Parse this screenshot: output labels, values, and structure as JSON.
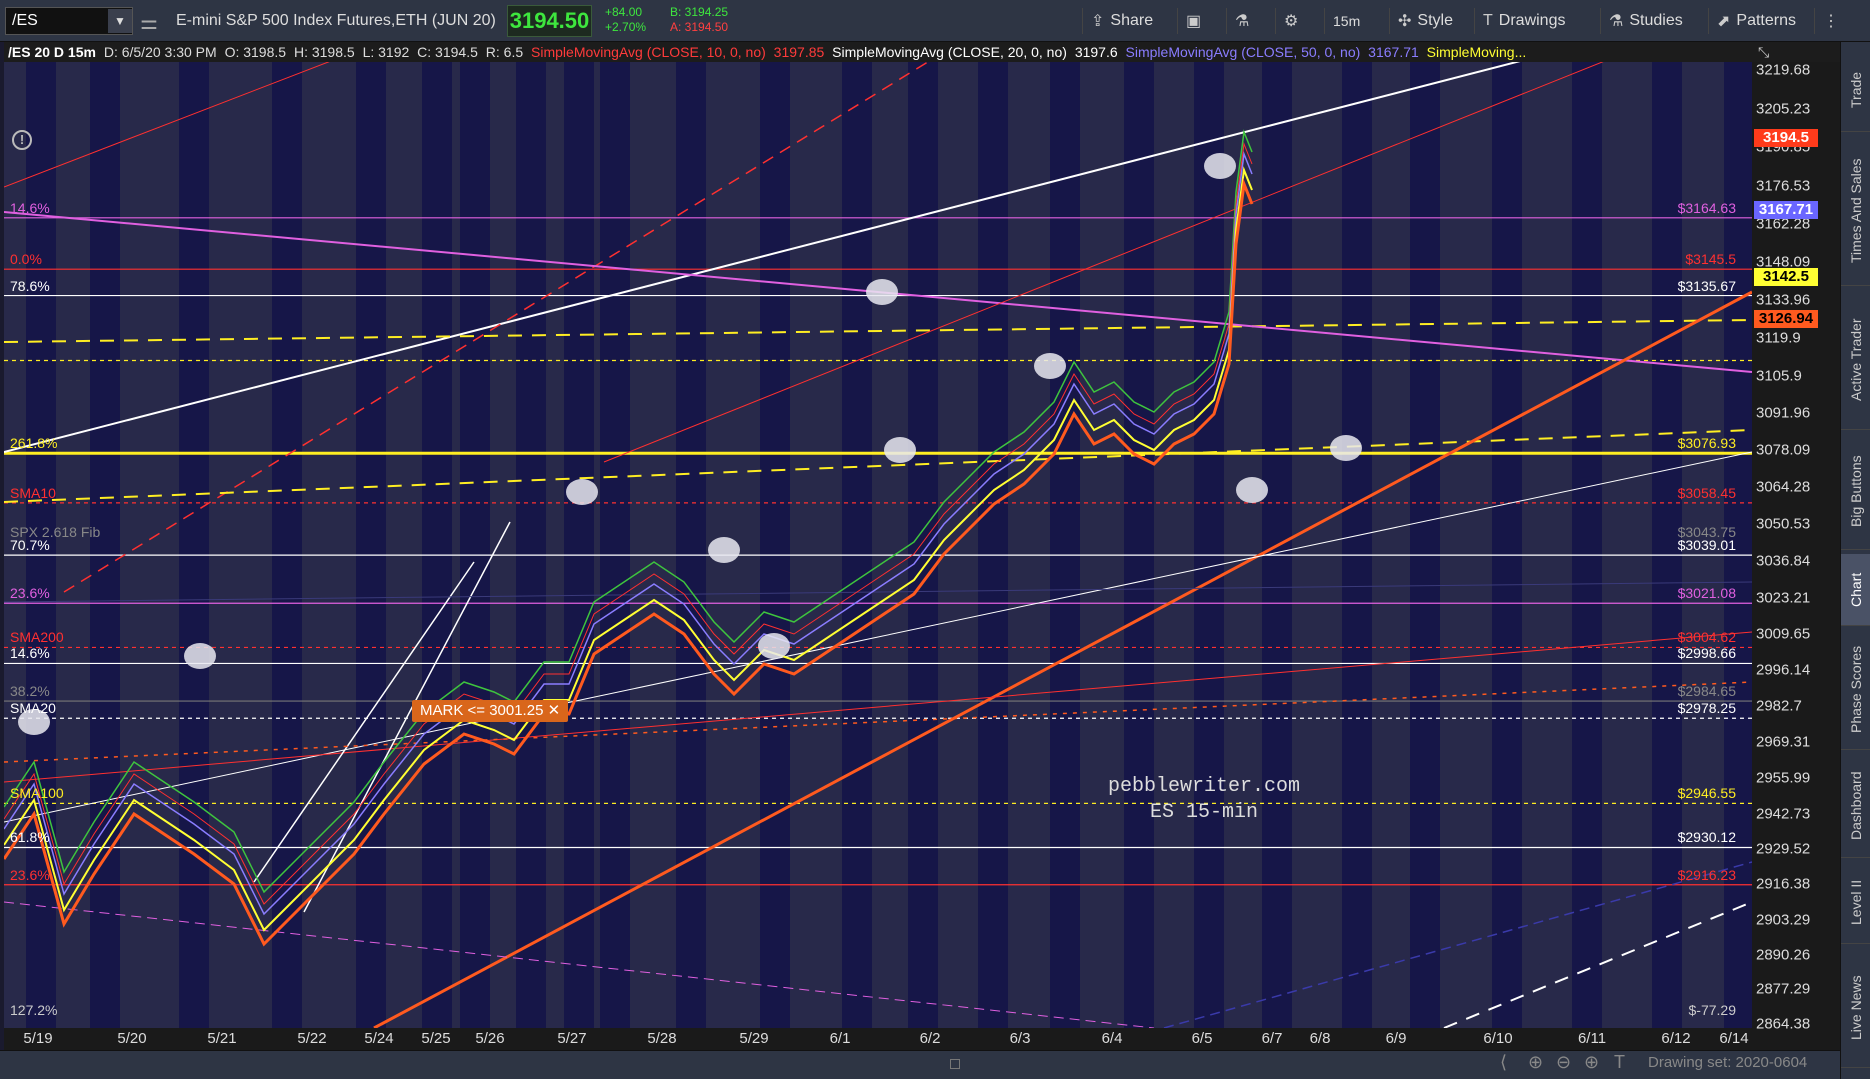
{
  "toolbar": {
    "symbol": "/ES",
    "description": "E-mini S&P 500 Index Futures,ETH (JUN 20)",
    "last": "3194.50",
    "change": "+84.00",
    "change_pct": "+2.70%",
    "bid": "B: 3194.25",
    "ask": "A: 3194.50",
    "share": "Share",
    "interval": "15m",
    "style": "Style",
    "drawings": "Drawings",
    "studies": "Studies",
    "patterns": "Patterns"
  },
  "legend": {
    "header": "/ES 20 D 15m",
    "date": "D: 6/5/20 3:30 PM",
    "open": "O: 3198.5",
    "high": "H: 3198.5",
    "low": "L: 3192",
    "close": "C: 3194.5",
    "range": "R: 6.5",
    "sma10_label": "SimpleMovingAvg (CLOSE, 10, 0, no)",
    "sma10_value": "3197.85",
    "sma20_label": "SimpleMovingAvg (CLOSE, 20, 0, no)",
    "sma20_value": "3197.6",
    "sma50_label": "SimpleMovingAvg (CLOSE, 50, 0, no)",
    "sma50_value": "3167.71",
    "more_label": "SimpleMoving..."
  },
  "colors": {
    "sma10": "#ff3b3b",
    "sma20": "#ffffff",
    "sma50": "#8a7dff",
    "sma100": "#ffff33",
    "sma200": "#ff5a1f",
    "magenta": "#e060e0",
    "yellow": "#ffee22",
    "orange": "#ff5a1f",
    "red": "#ff3030"
  },
  "y_axis": {
    "ticks": [
      "3219.68",
      "3205.23",
      "3190.85",
      "3176.53",
      "3162.28",
      "3148.09",
      "3133.96",
      "3119.9",
      "3105.9",
      "3091.96",
      "3078.09",
      "3064.28",
      "3050.53",
      "3036.84",
      "3023.21",
      "3009.65",
      "2996.14",
      "2982.7",
      "2969.31",
      "2955.99",
      "2942.73",
      "2929.52",
      "2916.38",
      "2903.29",
      "2890.26",
      "2877.29",
      "2864.38"
    ],
    "badges": [
      {
        "text": "3194.5",
        "bg": "#ff3b1b",
        "fg": "#fff",
        "price": 3194.5
      },
      {
        "text": "3167.71",
        "bg": "#6a66ff",
        "fg": "#fff",
        "price": 3167.71
      },
      {
        "text": "3142.5",
        "bg": "#ffff33",
        "fg": "#000",
        "price": 3142.5
      },
      {
        "text": "3126.94",
        "bg": "#ff5a1f",
        "fg": "#000",
        "price": 3126.94
      }
    ]
  },
  "x_axis": {
    "labels": [
      "5/19",
      "5/20",
      "5/21",
      "5/22",
      "5/24",
      "5/25",
      "5/26",
      "5/27",
      "5/28",
      "5/29",
      "6/1",
      "6/2",
      "6/3",
      "6/4",
      "6/5",
      "6/7",
      "6/8",
      "6/9",
      "6/10",
      "6/11",
      "6/12",
      "6/14"
    ]
  },
  "levels": [
    {
      "left": "14.6%",
      "right": "$3164.63",
      "price": 3164.63,
      "color": "#e060e0",
      "style": "solid"
    },
    {
      "left": "0.0%",
      "right": "$3145.5",
      "price": 3145.5,
      "color": "#ff3030",
      "style": "solid"
    },
    {
      "left": "78.6%",
      "right": "$3135.67",
      "price": 3135.67,
      "color": "#ffffff",
      "style": "solid"
    },
    {
      "left": "",
      "right": "",
      "price": 3111.5,
      "color": "#ffee22",
      "style": "dotted"
    },
    {
      "left": "261.8%",
      "right": "$3076.93",
      "price": 3076.93,
      "color": "#ffee22",
      "style": "thick"
    },
    {
      "left": "SMA10",
      "right": "$3058.45",
      "price": 3058.45,
      "color": "#ff3030",
      "style": "dotted"
    },
    {
      "left": "SPX 2.618 Fib",
      "right": "$3043.75",
      "price": 3043.75,
      "color": "#777777",
      "style": "none"
    },
    {
      "left": "70.7%",
      "right": "$3039.01",
      "price": 3039.01,
      "color": "#ffffff",
      "style": "solid"
    },
    {
      "left": "23.6%",
      "right": "$3021.08",
      "price": 3021.08,
      "color": "#e060e0",
      "style": "solid"
    },
    {
      "left": "SMA200",
      "right": "$3004.62",
      "price": 3004.62,
      "color": "#ff3030",
      "style": "dotted"
    },
    {
      "left": "14.6%",
      "right": "$2998.66",
      "price": 2998.66,
      "color": "#ffffff",
      "style": "solid"
    },
    {
      "left": "38.2%",
      "right": "$2984.65",
      "price": 2984.65,
      "color": "#777777",
      "style": "solid"
    },
    {
      "left": "SMA20",
      "right": "$2978.25",
      "price": 2978.25,
      "color": "#ffffff",
      "style": "dotted"
    },
    {
      "left": "SMA100",
      "right": "$2946.55",
      "price": 2946.55,
      "color": "#ffee22",
      "style": "dotted"
    },
    {
      "left": "61.8%",
      "right": "$2930.12",
      "price": 2930.12,
      "color": "#ffffff",
      "style": "solid"
    },
    {
      "left": "23.6%",
      "right": "$2916.23",
      "price": 2916.23,
      "color": "#ff3030",
      "style": "solid"
    },
    {
      "left": "127.2%",
      "right": "$-77.29",
      "price": 2866,
      "color": "#cccccc",
      "style": "none"
    }
  ],
  "mark_label": "MARK <= 3001.25 ✕",
  "watermark": [
    "pebblewriter.com",
    "ES 15-min"
  ],
  "sidebar_tabs": [
    "Trade",
    "Times And Sales",
    "Active Trader",
    "Big Buttons",
    "Chart",
    "Phase Scores",
    "Dashboard",
    "Level II",
    "Live News"
  ],
  "active_tab": "Chart",
  "drawing_set": "Drawing set: 2020-0604"
}
